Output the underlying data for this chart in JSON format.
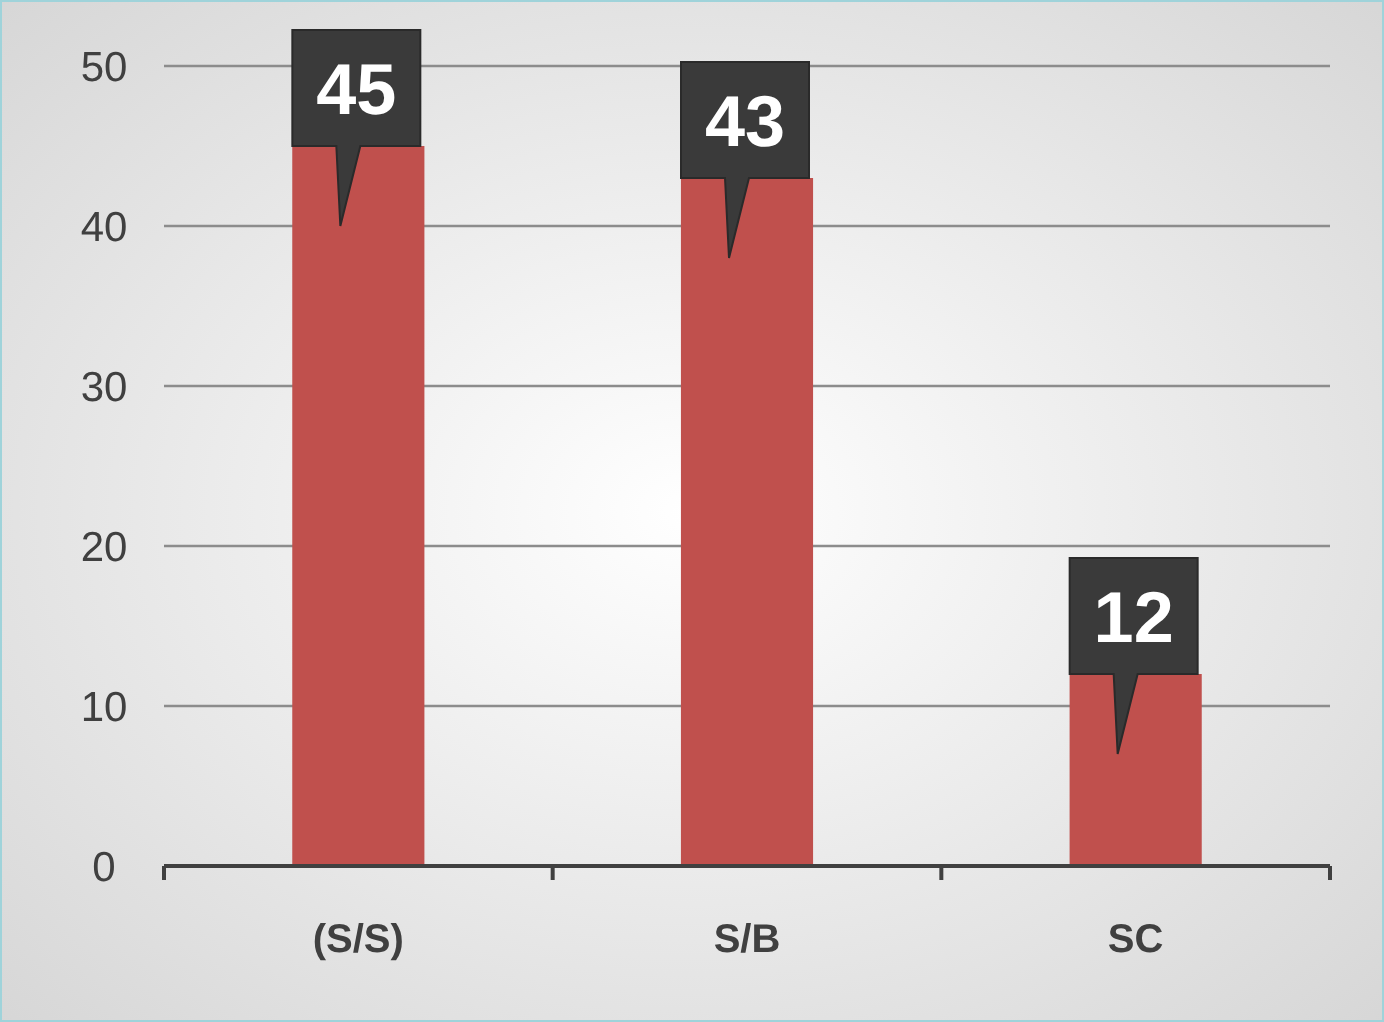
{
  "chart_data": {
    "type": "bar",
    "categories": [
      "(S/S)",
      "S/B",
      "SC"
    ],
    "values": [
      45,
      43,
      12
    ],
    "color": "#c0504d",
    "ylim": [
      0,
      50
    ],
    "yticks": [
      0,
      10,
      20,
      30,
      40,
      50
    ],
    "grid": "y",
    "data_labels": true
  }
}
